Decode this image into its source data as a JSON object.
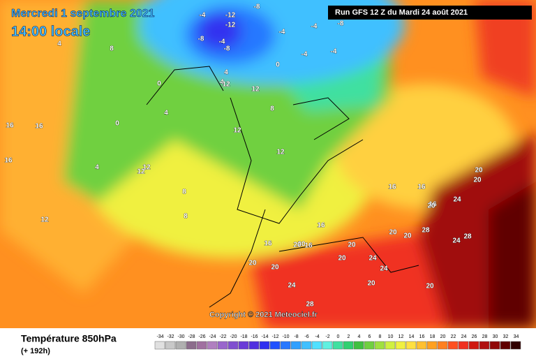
{
  "header": {
    "date": "Mercredi 1 septembre 2021",
    "time": "14:00 locale",
    "run": "Run GFS 12 Z du Mardi 24 août 2021"
  },
  "footer": {
    "title": "Température 850hPa",
    "lead": "(+ 192h)",
    "copyright": "Copyright © 2021 Meteociel.fr"
  },
  "scale": {
    "ticks": [
      -34,
      -32,
      -30,
      -28,
      -26,
      -24,
      -22,
      -20,
      -18,
      -16,
      -14,
      -12,
      -10,
      -8,
      -6,
      -4,
      -2,
      0,
      2,
      4,
      6,
      8,
      10,
      12,
      14,
      16,
      18,
      20,
      22,
      24,
      26,
      28,
      30,
      32,
      34
    ],
    "colors": [
      "#e0e0e0",
      "#c8c8c8",
      "#b0b0b0",
      "#8c6d8c",
      "#a070a0",
      "#b080c0",
      "#9966cc",
      "#8050d0",
      "#6a3cd8",
      "#5030e0",
      "#3030f0",
      "#2050ff",
      "#2878ff",
      "#30a0ff",
      "#40c0ff",
      "#50e0ff",
      "#60f0e0",
      "#40e0a0",
      "#30d070",
      "#40c040",
      "#70d040",
      "#a0e040",
      "#d0f040",
      "#f0f040",
      "#ffe040",
      "#ffc030",
      "#ffa020",
      "#ff8020",
      "#ff5020",
      "#f03020",
      "#d01810",
      "#b01010",
      "#900808",
      "#600000",
      "#300000"
    ]
  },
  "map": {
    "contour_labels": [
      -4,
      -12,
      -8,
      -12,
      -8,
      -4,
      -8,
      -4,
      -8,
      -4,
      -4,
      0,
      -4,
      4,
      8,
      4,
      0,
      4,
      0,
      4,
      12,
      12,
      8,
      12,
      4,
      16,
      16,
      16,
      12,
      12,
      8,
      12,
      8,
      12,
      16,
      16,
      20,
      16,
      20,
      20,
      24,
      24,
      28,
      24,
      20,
      20,
      24,
      28,
      20,
      20,
      16,
      16,
      16,
      20,
      20,
      20,
      20,
      24,
      28,
      20,
      20
    ]
  }
}
